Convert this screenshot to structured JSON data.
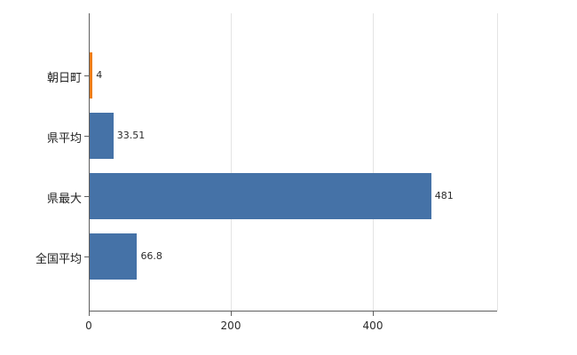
{
  "chart_data": {
    "type": "bar",
    "orientation": "horizontal",
    "title": "",
    "xlabel": "",
    "ylabel": "",
    "categories": [
      "朝日町",
      "県平均",
      "県最大",
      "全国平均"
    ],
    "values": [
      4,
      33.51,
      481,
      66.8
    ],
    "value_labels": [
      "4",
      "33.51",
      "481",
      "66.8"
    ],
    "xlim": [
      0,
      575
    ],
    "xticks": [
      0,
      200,
      400
    ],
    "xtick_labels": [
      "0",
      "200",
      "400"
    ],
    "grid": "on",
    "legend": "none",
    "bar_color": "#4572a7",
    "highlight_color": "#ee7d18",
    "highlight_index": 0
  }
}
